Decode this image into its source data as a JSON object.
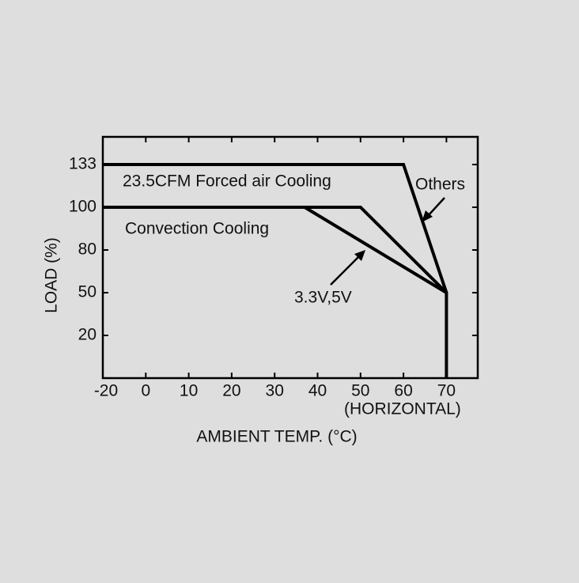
{
  "chart_data": {
    "type": "line",
    "x_label": "AMBIENT TEMP. (°C)",
    "y_label": "LOAD (%)",
    "xlim": [
      -20,
      77
    ],
    "xticks": [
      -20,
      0,
      10,
      20,
      30,
      40,
      50,
      60,
      70
    ],
    "ylim": [
      0,
      154
    ],
    "yticks": [
      20,
      50,
      80,
      100,
      133
    ],
    "annotations": [
      "Others",
      "(HORIZONTAL)"
    ],
    "series": [
      {
        "name": "23.5CFM Forced air Cooling",
        "color": "#000000",
        "x": [
          -20,
          60,
          70,
          70
        ],
        "values": [
          133,
          133,
          50,
          0
        ]
      },
      {
        "name": "Convection Cooling",
        "color": "#000000",
        "x": [
          -20,
          50,
          70
        ],
        "values": [
          100,
          100,
          50
        ]
      },
      {
        "name": "3.3V,5V",
        "color": "#000000",
        "x": [
          37,
          70
        ],
        "values": [
          100,
          50
        ]
      }
    ]
  }
}
